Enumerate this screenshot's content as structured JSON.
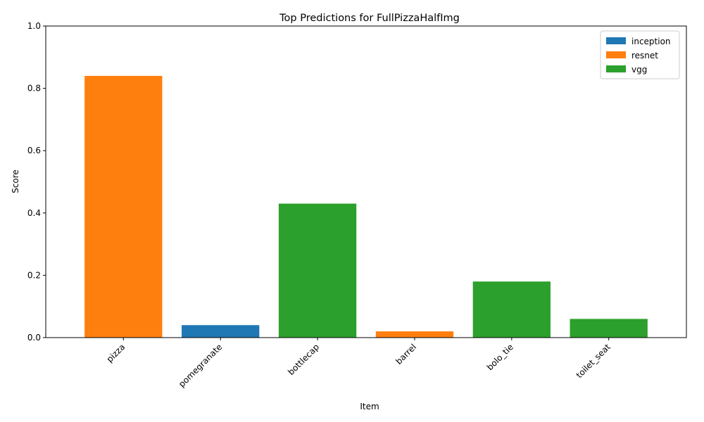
{
  "chart_data": {
    "type": "bar",
    "title": "Top Predictions for FullPizzaHalfImg",
    "xlabel": "Item",
    "ylabel": "Score",
    "ylim": [
      0,
      1
    ],
    "yticks": [
      "0.0",
      "0.2",
      "0.4",
      "0.6",
      "0.8",
      "1.0"
    ],
    "categories": [
      "pizza",
      "pomegranate",
      "bottlecap",
      "barrel",
      "bolo_tie",
      "toilet_seat"
    ],
    "bars": [
      {
        "category": "pizza",
        "series": "resnet",
        "value": 0.84
      },
      {
        "category": "pomegranate",
        "series": "inception",
        "value": 0.04
      },
      {
        "category": "bottlecap",
        "series": "vgg",
        "value": 0.43
      },
      {
        "category": "barrel",
        "series": "resnet",
        "value": 0.02
      },
      {
        "category": "bolo_tie",
        "series": "vgg",
        "value": 0.18
      },
      {
        "category": "toilet_seat",
        "series": "vgg",
        "value": 0.06
      }
    ],
    "series": [
      {
        "name": "inception",
        "color": "#1f77b4"
      },
      {
        "name": "resnet",
        "color": "#ff7f0e"
      },
      {
        "name": "vgg",
        "color": "#2ca02c"
      }
    ],
    "legend_position": "top-right",
    "grid": false
  }
}
